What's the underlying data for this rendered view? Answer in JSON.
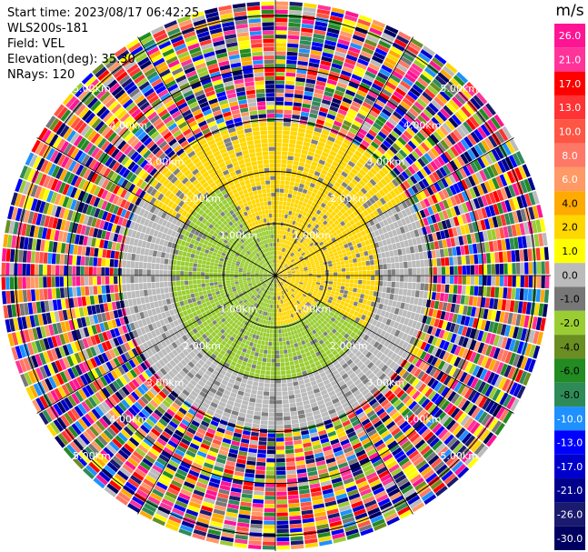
{
  "header": {
    "start_time": "Start time: 2023/08/17 06:42:25",
    "instrument": "WLS200s-181",
    "field": "Field: VEL",
    "elevation": "Elevation(deg): 35.30",
    "nrays": "NRays: 120"
  },
  "chart_data": {
    "type": "heatmap",
    "subtype": "ppi-polar",
    "unit": "m/s",
    "nrays": 120,
    "range_ring_labels": [
      "1.00km",
      "2.00km",
      "3.00km",
      "4.00km",
      "5.00km"
    ],
    "range_rings_km": [
      1,
      2,
      3,
      4,
      5
    ],
    "max_range_km": 5.3,
    "colorbar": {
      "unit": "m/s",
      "ticks": [
        "26.0",
        "21.0",
        "17.0",
        "13.0",
        "10.0",
        "8.0",
        "6.0",
        "4.0",
        "2.0",
        "1.0",
        "0.0",
        "-1.0",
        "-2.0",
        "-4.0",
        "-6.0",
        "-8.0",
        "-10.0",
        "-13.0",
        "-17.0",
        "-21.0",
        "-26.0",
        "-30.0"
      ],
      "colors": [
        "#ff1493",
        "#ff3399",
        "#ff0000",
        "#ff3333",
        "#ff5544",
        "#ff7766",
        "#ff9966",
        "#ffaa00",
        "#ffd700",
        "#ffff00",
        "#bbbbbb",
        "#777777",
        "#9acd32",
        "#6b8e23",
        "#228b22",
        "#2e8b57",
        "#1e90ff",
        "#0000ff",
        "#0000cd",
        "#00008b",
        "#1a1a6e",
        "#000060"
      ]
    },
    "near_field_pattern": [
      {
        "range_km": [
          0.0,
          1.0
        ],
        "az_deg": [
          0,
          180
        ],
        "value_ms": 2.0
      },
      {
        "range_km": [
          0.0,
          1.0
        ],
        "az_deg": [
          180,
          360
        ],
        "value_ms": -2.0
      },
      {
        "range_km": [
          1.0,
          2.0
        ],
        "az_deg": [
          330,
          120
        ],
        "value_ms": 2.0
      },
      {
        "range_km": [
          1.0,
          2.0
        ],
        "az_deg": [
          120,
          330
        ],
        "value_ms": -2.0
      },
      {
        "range_km": [
          2.0,
          3.0
        ],
        "az_deg": [
          300,
          60
        ],
        "value_ms": 2.0
      },
      {
        "range_km": [
          2.0,
          3.0
        ],
        "az_deg": [
          60,
          300
        ],
        "value_ms": 0.0
      },
      {
        "range_km": [
          3.0,
          5.3
        ],
        "az_deg": [
          0,
          360
        ],
        "value_ms": "noise"
      }
    ]
  }
}
